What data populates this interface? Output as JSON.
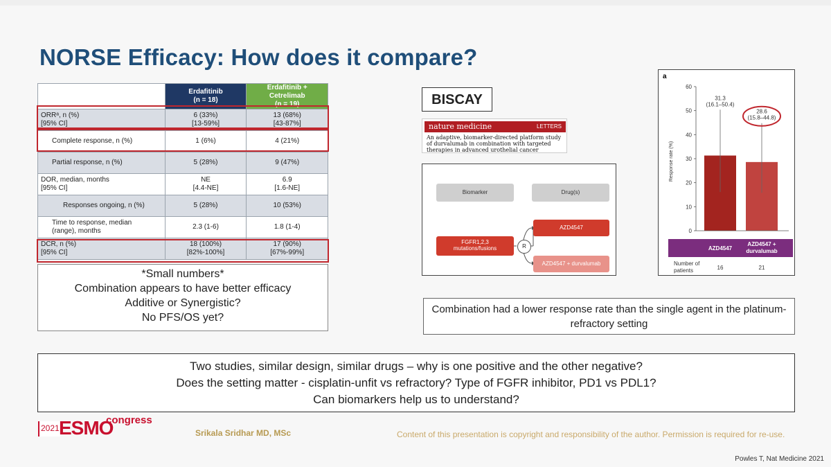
{
  "slide": {
    "title": "NORSE Efficacy: How does it compare?",
    "table": {
      "headers": [
        "",
        "Erdafitinib\n(n = 18)",
        "Erdafitinib + Cetrelimab\n(n = 19)"
      ],
      "header_col2_line1": "Erdafitinib",
      "header_col2_line2": "(n = 18)",
      "header_col3_line1": "Erdafitinib + Cetrelimab",
      "header_col3_line2": "(n = 19)",
      "rows": [
        {
          "label1": "ORRᵃ, n (%)",
          "label2": "[95% CI]",
          "v1a": "6 (33%)",
          "v1b": "[13-59%]",
          "v2a": "13 (68%)",
          "v2b": "[43-87%]"
        },
        {
          "label1": "Complete response, n (%)",
          "label2": "",
          "v1a": "1 (6%)",
          "v1b": "",
          "v2a": "4 (21%)",
          "v2b": ""
        },
        {
          "label1": "Partial response, n (%)",
          "label2": "",
          "v1a": "5 (28%)",
          "v1b": "",
          "v2a": "9 (47%)",
          "v2b": ""
        },
        {
          "label1": "DOR, median, months",
          "label2": "[95% CI]",
          "v1a": "NE",
          "v1b": "[4.4-NE]",
          "v2a": "6.9",
          "v2b": "[1.6-NE]"
        },
        {
          "label1": "Responses ongoing, n (%)",
          "label2": "",
          "v1a": "5 (28%)",
          "v1b": "",
          "v2a": "10 (53%)",
          "v2b": ""
        },
        {
          "label1": "Time to response, median",
          "label2": "(range), months",
          "v1a": "2.3 (1-6)",
          "v1b": "",
          "v2a": "1.8 (1-4)",
          "v2b": ""
        },
        {
          "label1": "DCR, n (%)",
          "label2": "[95% CI]",
          "v1a": "18 (100%)",
          "v1b": "[82%-100%]",
          "v2a": "17 (90%)",
          "v2b": "[67%-99%]"
        }
      ]
    },
    "notes": [
      "*Small numbers*",
      "Combination appears to have better efficacy",
      "Additive or Synergistic?",
      "No PFS/OS yet?"
    ],
    "biscay_label": "BISCAY",
    "journal": {
      "name": "nature medicine",
      "section": "LETTERS",
      "article_title": "An adaptive, biomarker-directed platform study of durvalumab in combination with targeted therapies in advanced urothelial cancer"
    },
    "diagram": {
      "biomarker_label": "Biomarker",
      "drugs_label": "Drug(s)",
      "mutation_line1": "FGFR1,2,3",
      "mutation_line2": "mutations/fusions",
      "randomize": "R",
      "arm1": "AZD4547",
      "arm2": "AZD4547 + durvalumab"
    },
    "chart_panel_letter": "a",
    "chart_caption": "Combination had a lower response rate than the single agent in the platinum-refractory setting",
    "bottom_questions": [
      "Two studies, similar design, similar drugs – why is one positive and the other negative?",
      "Does the setting matter - cisplatin-unfit vs refractory? Type of FGFR inhibitor, PD1 vs PDL1?",
      "Can biomarkers help us to understand?"
    ],
    "footer": {
      "year": "2021",
      "brand": "ESMO",
      "congress": "congress",
      "author": "Srikala Sridhar MD, MSc",
      "copyright": "Content of this presentation is copyright and responsibility of the author. Permission is required for re-use.",
      "citation": "Powles T, Nat Medicine 2021"
    },
    "colors": {
      "title": "#1f4e79",
      "header_erdafitinib": "#1f3864",
      "header_combo": "#70ad47",
      "highlight_box": "#c0262d",
      "bar_single": "#a3241f",
      "bar_combo": "#c0433f",
      "legend_band": "#7b2d7e"
    }
  },
  "chart_data": {
    "type": "bar",
    "categories": [
      "AZD4547",
      "AZD4547 + durvalumab"
    ],
    "values": [
      31.3,
      28.6
    ],
    "ci_labels": [
      "(16.1–50.4)",
      "(15.8–44.8)"
    ],
    "ci_low": [
      16.1,
      15.8
    ],
    "ci_high": [
      50.4,
      44.8
    ],
    "value_labels": [
      "31.3",
      "28.6"
    ],
    "ylabel": "Response rate (%)",
    "ylim": [
      0,
      60
    ],
    "yticks": [
      0,
      10,
      20,
      30,
      40,
      50,
      60
    ],
    "n_label_line1": "Number of",
    "n_label_line2": "patients",
    "n_values": [
      "16",
      "21"
    ],
    "highlighted": "AZD4547 + durvalumab"
  }
}
